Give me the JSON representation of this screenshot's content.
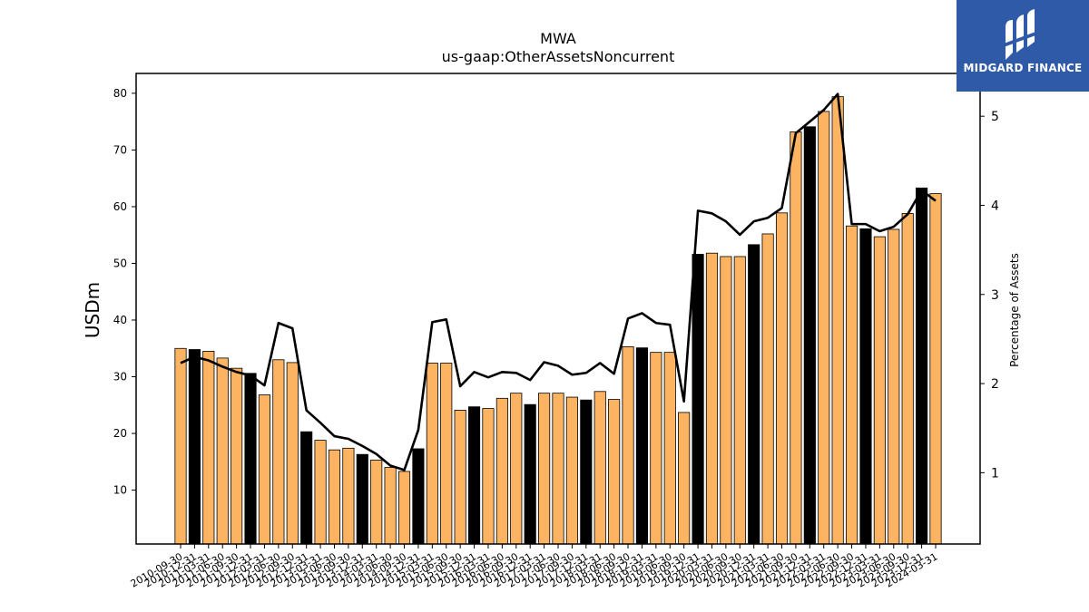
{
  "chart_data": {
    "type": "bar",
    "title": "MWA",
    "subtitle": "us-gaap:OtherAssetsNoncurrent",
    "ylabel": "USDm",
    "y2label": "Percentage of Assets",
    "ylim": [
      0.5,
      83.5
    ],
    "y2lim": [
      0.2,
      5.48
    ],
    "yticks": [
      10,
      20,
      30,
      40,
      50,
      60,
      70,
      80
    ],
    "y2ticks": [
      1,
      2,
      3,
      4,
      5
    ],
    "categories": [
      "2010-09-30",
      "2010-12-31",
      "2011-03-31",
      "2011-06-30",
      "2011-09-30",
      "2011-12-31",
      "2012-03-31",
      "2012-06-30",
      "2012-09-30",
      "2012-12-31",
      "2013-03-31",
      "2013-06-30",
      "2013-09-30",
      "2013-12-31",
      "2014-03-31",
      "2014-06-30",
      "2014-09-30",
      "2014-12-31",
      "2015-03-31",
      "2015-06-30",
      "2015-09-30",
      "2015-12-31",
      "2016-03-31",
      "2016-06-30",
      "2016-09-30",
      "2016-12-31",
      "2017-03-31",
      "2017-06-30",
      "2017-09-30",
      "2017-12-31",
      "2018-03-31",
      "2018-06-30",
      "2018-09-30",
      "2018-12-31",
      "2019-03-31",
      "2019-06-30",
      "2019-09-30",
      "2019-12-31",
      "2020-03-31",
      "2020-06-30",
      "2020-09-30",
      "2020-12-31",
      "2021-03-31",
      "2021-06-30",
      "2021-09-30",
      "2021-12-31",
      "2022-03-31",
      "2022-06-30",
      "2022-09-30",
      "2022-12-31",
      "2023-03-31",
      "2023-06-30",
      "2023-09-30",
      "2023-12-31",
      "2024-03-31"
    ],
    "values": [
      35.0,
      34.8,
      34.5,
      33.3,
      31.5,
      30.6,
      26.8,
      33.0,
      32.5,
      20.3,
      18.8,
      17.1,
      17.4,
      16.3,
      15.3,
      14.0,
      13.3,
      17.3,
      32.4,
      32.4,
      24.1,
      24.7,
      24.4,
      26.2,
      27.1,
      25.1,
      27.1,
      27.1,
      26.4,
      25.9,
      27.4,
      26.0,
      35.3,
      35.1,
      34.3,
      34.3,
      23.7,
      51.6,
      51.8,
      51.2,
      51.2,
      53.3,
      55.2,
      58.9,
      73.2,
      74.1,
      76.8,
      79.4,
      56.6,
      56.1,
      54.7,
      56.0,
      58.8,
      63.3,
      62.3
    ],
    "highlight": [
      false,
      true,
      false,
      false,
      false,
      true,
      false,
      false,
      false,
      true,
      false,
      false,
      false,
      true,
      false,
      false,
      false,
      true,
      false,
      false,
      false,
      true,
      false,
      false,
      false,
      true,
      false,
      false,
      false,
      true,
      false,
      false,
      false,
      true,
      false,
      false,
      false,
      true,
      false,
      false,
      false,
      true,
      false,
      false,
      false,
      true,
      false,
      false,
      false,
      true,
      false,
      false,
      false,
      true,
      false
    ],
    "line_series": {
      "axis": "right",
      "values": [
        2.23,
        2.3,
        2.26,
        2.19,
        2.13,
        2.09,
        1.98,
        2.68,
        2.62,
        1.7,
        1.56,
        1.41,
        1.38,
        1.3,
        1.21,
        1.08,
        1.03,
        1.48,
        2.69,
        2.72,
        1.97,
        2.13,
        2.07,
        2.13,
        2.12,
        2.04,
        2.24,
        2.2,
        2.1,
        2.12,
        2.23,
        2.11,
        2.73,
        2.79,
        2.68,
        2.66,
        1.8,
        3.94,
        3.91,
        3.82,
        3.67,
        3.82,
        3.86,
        3.97,
        4.81,
        4.94,
        5.07,
        5.25,
        3.79,
        3.79,
        3.71,
        3.76,
        3.9,
        4.17,
        4.05
      ]
    },
    "colors": {
      "bar": "#fdb462",
      "bar_highlight": "#000000",
      "line": "#000000"
    },
    "grid": false,
    "legend": "none"
  },
  "logo": {
    "text": "MIDGARD FINANCE",
    "background": "#2f5aa8"
  }
}
